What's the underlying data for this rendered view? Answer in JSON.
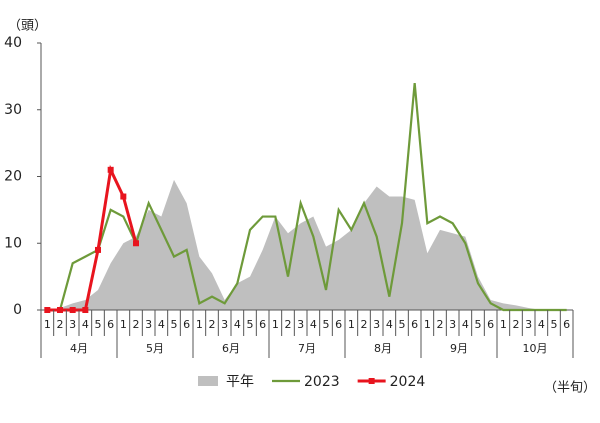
{
  "chart_data": {
    "type": "line",
    "y_axis_label": "（頭）",
    "x_axis_label": "（半旬）",
    "categories": [
      "1",
      "2",
      "3",
      "4",
      "5",
      "6",
      "1",
      "2",
      "3",
      "4",
      "5",
      "6",
      "1",
      "2",
      "3",
      "4",
      "5",
      "6",
      "1",
      "2",
      "3",
      "4",
      "5",
      "6",
      "1",
      "2",
      "3",
      "4",
      "5",
      "6",
      "1",
      "2",
      "3",
      "4",
      "5",
      "6",
      "1",
      "2",
      "3",
      "4",
      "5",
      "6"
    ],
    "months": [
      "4月",
      "5月",
      "6月",
      "7月",
      "8月",
      "9月",
      "10月"
    ],
    "series": [
      {
        "name": "平年",
        "type": "area",
        "color": "#bfbfbf",
        "values": [
          0,
          0.3,
          1,
          1.5,
          3,
          7,
          10,
          11,
          15,
          14,
          19.5,
          16,
          8,
          5.5,
          1.5,
          4,
          5,
          9,
          14,
          11.5,
          13,
          14,
          9.5,
          10.5,
          12,
          16,
          18.5,
          17,
          17,
          16.5,
          8.5,
          12,
          11.5,
          11,
          5,
          1.5,
          1,
          0.7,
          0.3,
          0,
          0,
          0
        ]
      },
      {
        "name": "2023",
        "type": "line",
        "color": "#6e9a3a",
        "values": [
          0,
          0,
          7,
          8,
          9,
          15,
          14,
          10,
          16,
          12,
          8,
          9,
          1,
          2,
          1,
          4,
          12,
          14,
          14,
          5,
          16,
          11,
          3,
          15,
          12,
          16,
          11,
          2,
          13,
          34,
          13,
          14,
          13,
          10,
          4,
          1,
          0,
          0,
          0,
          0,
          0,
          0
        ]
      },
      {
        "name": "2024",
        "type": "line",
        "color": "#e8141e",
        "markers": true,
        "values": [
          0,
          0,
          0,
          0,
          9,
          21,
          17,
          10,
          null,
          null,
          null,
          null,
          null,
          null,
          null,
          null,
          null,
          null,
          null,
          null,
          null,
          null,
          null,
          null,
          null,
          null,
          null,
          null,
          null,
          null,
          null,
          null,
          null,
          null,
          null,
          null,
          null,
          null,
          null,
          null,
          null,
          null
        ]
      }
    ],
    "ylim": [
      0,
      40
    ],
    "yticks": [
      0,
      10,
      20,
      30,
      40
    ],
    "legend": "bottom"
  }
}
